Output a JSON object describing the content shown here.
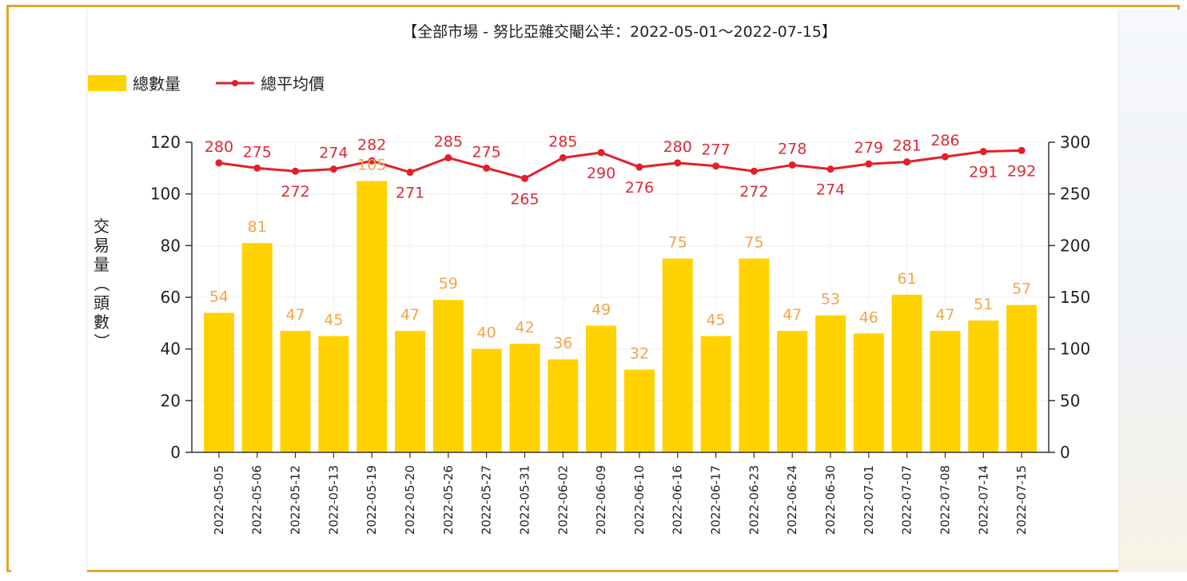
{
  "chart_data": {
    "type": "bar",
    "title": "【全部市場 - 努比亞雜交閹公羊：2022-05-01～2022-07-15】",
    "ylabel": "交易量（頭數）",
    "xlabel": "",
    "ylim": [
      0,
      120
    ],
    "y2lim": [
      0,
      300
    ],
    "yticks": [
      0,
      20,
      40,
      60,
      80,
      100,
      120
    ],
    "y2ticks": [
      0,
      50,
      100,
      150,
      200,
      250,
      300
    ],
    "legend_position": "top-left",
    "grid": true,
    "categories": [
      "2022-05-05",
      "2022-05-06",
      "2022-05-12",
      "2022-05-13",
      "2022-05-19",
      "2022-05-20",
      "2022-05-26",
      "2022-05-27",
      "2022-05-31",
      "2022-06-02",
      "2022-06-09",
      "2022-06-10",
      "2022-06-16",
      "2022-06-17",
      "2022-06-23",
      "2022-06-24",
      "2022-06-30",
      "2022-07-01",
      "2022-07-07",
      "2022-07-08",
      "2022-07-14",
      "2022-07-15"
    ],
    "series": [
      {
        "name": "總數量",
        "type": "bar",
        "axis": "left",
        "color": "#ffd200",
        "values": [
          54,
          81,
          47,
          45,
          105,
          47,
          59,
          40,
          42,
          36,
          49,
          32,
          75,
          45,
          75,
          47,
          53,
          46,
          61,
          47,
          51,
          57
        ]
      },
      {
        "name": "總平均價",
        "type": "line",
        "axis": "right",
        "color": "#e2202b",
        "values": [
          280,
          275,
          272,
          274,
          282,
          271,
          285,
          275,
          265,
          285,
          290,
          276,
          280,
          277,
          272,
          278,
          274,
          279,
          281,
          286,
          291,
          292
        ]
      }
    ]
  }
}
